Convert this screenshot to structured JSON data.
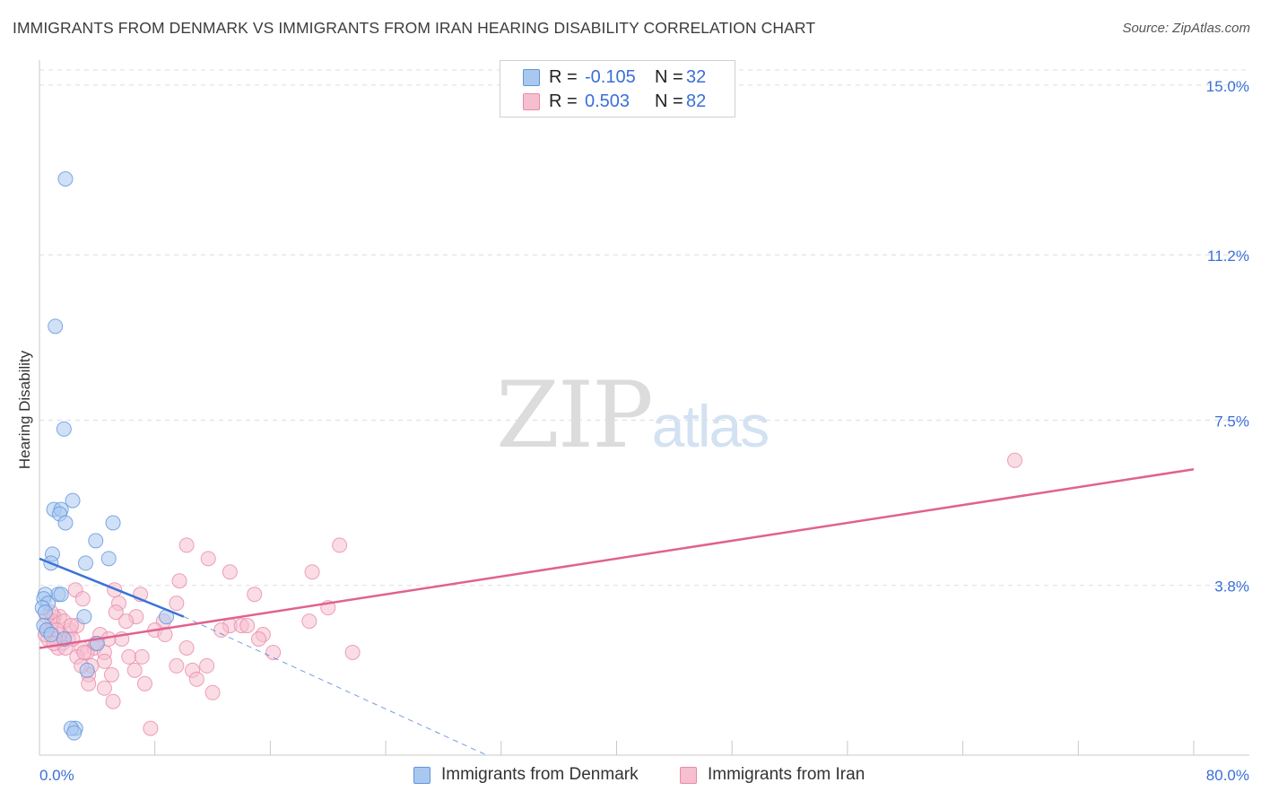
{
  "header": {
    "title": "IMMIGRANTS FROM DENMARK VS IMMIGRANTS FROM IRAN HEARING DISABILITY CORRELATION CHART",
    "source": "Source: ZipAtlas.com"
  },
  "watermark": {
    "zip": "ZIP",
    "atlas": "atlas"
  },
  "legend": {
    "rows": [
      {
        "r_label": "R =",
        "r_value": "-0.105",
        "n_label": "N =",
        "n_value": "32"
      },
      {
        "r_label": "R =",
        "r_value": "0.503",
        "n_label": "N =",
        "n_value": "82"
      }
    ]
  },
  "bottom_legend": {
    "denmark": "Immigrants from Denmark",
    "iran": "Immigrants from Iran"
  },
  "colors": {
    "denmark_fill": "#a9c8f0",
    "denmark_stroke": "#5f95dc",
    "denmark_line": "#3a72d6",
    "iran_fill": "#f6bfd0",
    "iran_stroke": "#e98aa9",
    "iran_line": "#e0628e",
    "tick_label": "#3a6fd8",
    "grid": "#dddddd"
  },
  "chart_data": {
    "type": "scatter",
    "title": "IMMIGRANTS FROM DENMARK VS IMMIGRANTS FROM IRAN HEARING DISABILITY CORRELATION CHART",
    "xlabel": "",
    "ylabel": "Hearing Disability",
    "xlim": [
      0,
      80
    ],
    "ylim": [
      0,
      15.5
    ],
    "x_tick_labels": [
      "0.0%",
      "80.0%"
    ],
    "y_ticks": [
      3.8,
      7.5,
      11.2,
      15.0
    ],
    "y_tick_labels": [
      "3.8%",
      "7.5%",
      "11.2%",
      "15.0%"
    ],
    "grid": true,
    "legend_position": "top-center",
    "series": [
      {
        "name": "Immigrants from Denmark",
        "points": [
          [
            1.8,
            12.9
          ],
          [
            1.1,
            9.6
          ],
          [
            1.7,
            7.3
          ],
          [
            2.3,
            5.7
          ],
          [
            1.0,
            5.5
          ],
          [
            1.5,
            5.5
          ],
          [
            1.4,
            5.4
          ],
          [
            1.8,
            5.2
          ],
          [
            5.1,
            5.2
          ],
          [
            3.9,
            4.8
          ],
          [
            0.9,
            4.5
          ],
          [
            4.8,
            4.4
          ],
          [
            0.8,
            4.3
          ],
          [
            3.2,
            4.3
          ],
          [
            1.3,
            3.6
          ],
          [
            1.5,
            3.6
          ],
          [
            0.4,
            3.6
          ],
          [
            0.3,
            3.5
          ],
          [
            0.6,
            3.4
          ],
          [
            0.2,
            3.3
          ],
          [
            0.4,
            3.2
          ],
          [
            3.1,
            3.1
          ],
          [
            8.8,
            3.1
          ],
          [
            0.3,
            2.9
          ],
          [
            0.5,
            2.8
          ],
          [
            0.8,
            2.7
          ],
          [
            1.7,
            2.6
          ],
          [
            4.0,
            2.5
          ],
          [
            3.3,
            1.9
          ],
          [
            2.5,
            0.6
          ],
          [
            2.2,
            0.6
          ],
          [
            2.4,
            0.5
          ]
        ]
      },
      {
        "name": "Immigrants from Iran",
        "points": [
          [
            67.6,
            6.6
          ],
          [
            10.2,
            4.7
          ],
          [
            20.8,
            4.7
          ],
          [
            11.7,
            4.4
          ],
          [
            13.2,
            4.1
          ],
          [
            18.9,
            4.1
          ],
          [
            9.7,
            3.9
          ],
          [
            2.5,
            3.7
          ],
          [
            5.2,
            3.7
          ],
          [
            7.0,
            3.6
          ],
          [
            14.9,
            3.6
          ],
          [
            3.0,
            3.5
          ],
          [
            5.5,
            3.4
          ],
          [
            9.5,
            3.4
          ],
          [
            20.0,
            3.3
          ],
          [
            5.3,
            3.2
          ],
          [
            1.4,
            3.1
          ],
          [
            1.0,
            3.1
          ],
          [
            6.7,
            3.1
          ],
          [
            8.6,
            3.0
          ],
          [
            13.2,
            2.9
          ],
          [
            14.0,
            2.9
          ],
          [
            12.6,
            2.8
          ],
          [
            8.0,
            2.8
          ],
          [
            8.7,
            2.7
          ],
          [
            0.8,
            2.8
          ],
          [
            1.4,
            2.7
          ],
          [
            0.5,
            2.8
          ],
          [
            0.9,
            2.7
          ],
          [
            0.6,
            2.6
          ],
          [
            4.2,
            2.7
          ],
          [
            4.8,
            2.6
          ],
          [
            5.7,
            2.6
          ],
          [
            15.5,
            2.7
          ],
          [
            15.2,
            2.6
          ],
          [
            10.2,
            2.4
          ],
          [
            2.1,
            2.8
          ],
          [
            1.6,
            2.5
          ],
          [
            2.9,
            2.4
          ],
          [
            3.8,
            2.4
          ],
          [
            3.3,
            2.3
          ],
          [
            4.5,
            2.3
          ],
          [
            6.2,
            2.2
          ],
          [
            7.1,
            2.2
          ],
          [
            16.2,
            2.3
          ],
          [
            21.7,
            2.3
          ],
          [
            1.3,
            2.4
          ],
          [
            2.0,
            2.6
          ],
          [
            0.9,
            3.0
          ],
          [
            0.5,
            3.1
          ],
          [
            1.7,
            3.0
          ],
          [
            2.6,
            2.9
          ],
          [
            1.2,
            2.8
          ],
          [
            2.3,
            2.6
          ],
          [
            4.5,
            2.1
          ],
          [
            3.6,
            2.0
          ],
          [
            11.6,
            2.0
          ],
          [
            10.6,
            1.9
          ],
          [
            9.5,
            2.0
          ],
          [
            6.6,
            1.9
          ],
          [
            3.4,
            1.8
          ],
          [
            5.0,
            1.8
          ],
          [
            10.9,
            1.7
          ],
          [
            7.3,
            1.6
          ],
          [
            4.5,
            1.5
          ],
          [
            3.4,
            1.6
          ],
          [
            12.0,
            1.4
          ],
          [
            5.1,
            1.2
          ],
          [
            7.7,
            0.6
          ],
          [
            2.6,
            2.2
          ],
          [
            1.8,
            2.4
          ],
          [
            3.9,
            2.5
          ],
          [
            6.0,
            3.0
          ],
          [
            1.1,
            2.6
          ],
          [
            2.2,
            2.9
          ],
          [
            0.4,
            2.7
          ],
          [
            0.8,
            3.2
          ],
          [
            14.4,
            2.9
          ],
          [
            18.7,
            3.0
          ],
          [
            2.9,
            2.0
          ],
          [
            3.1,
            2.3
          ],
          [
            1.0,
            2.5
          ]
        ]
      }
    ],
    "trendlines": [
      {
        "series": "Immigrants from Denmark",
        "x": [
          0,
          10
        ],
        "y": [
          4.4,
          3.1
        ],
        "dashed_extension_to": [
          31,
          0
        ]
      },
      {
        "series": "Immigrants from Iran",
        "x": [
          0,
          80
        ],
        "y": [
          2.4,
          6.4
        ]
      }
    ]
  }
}
